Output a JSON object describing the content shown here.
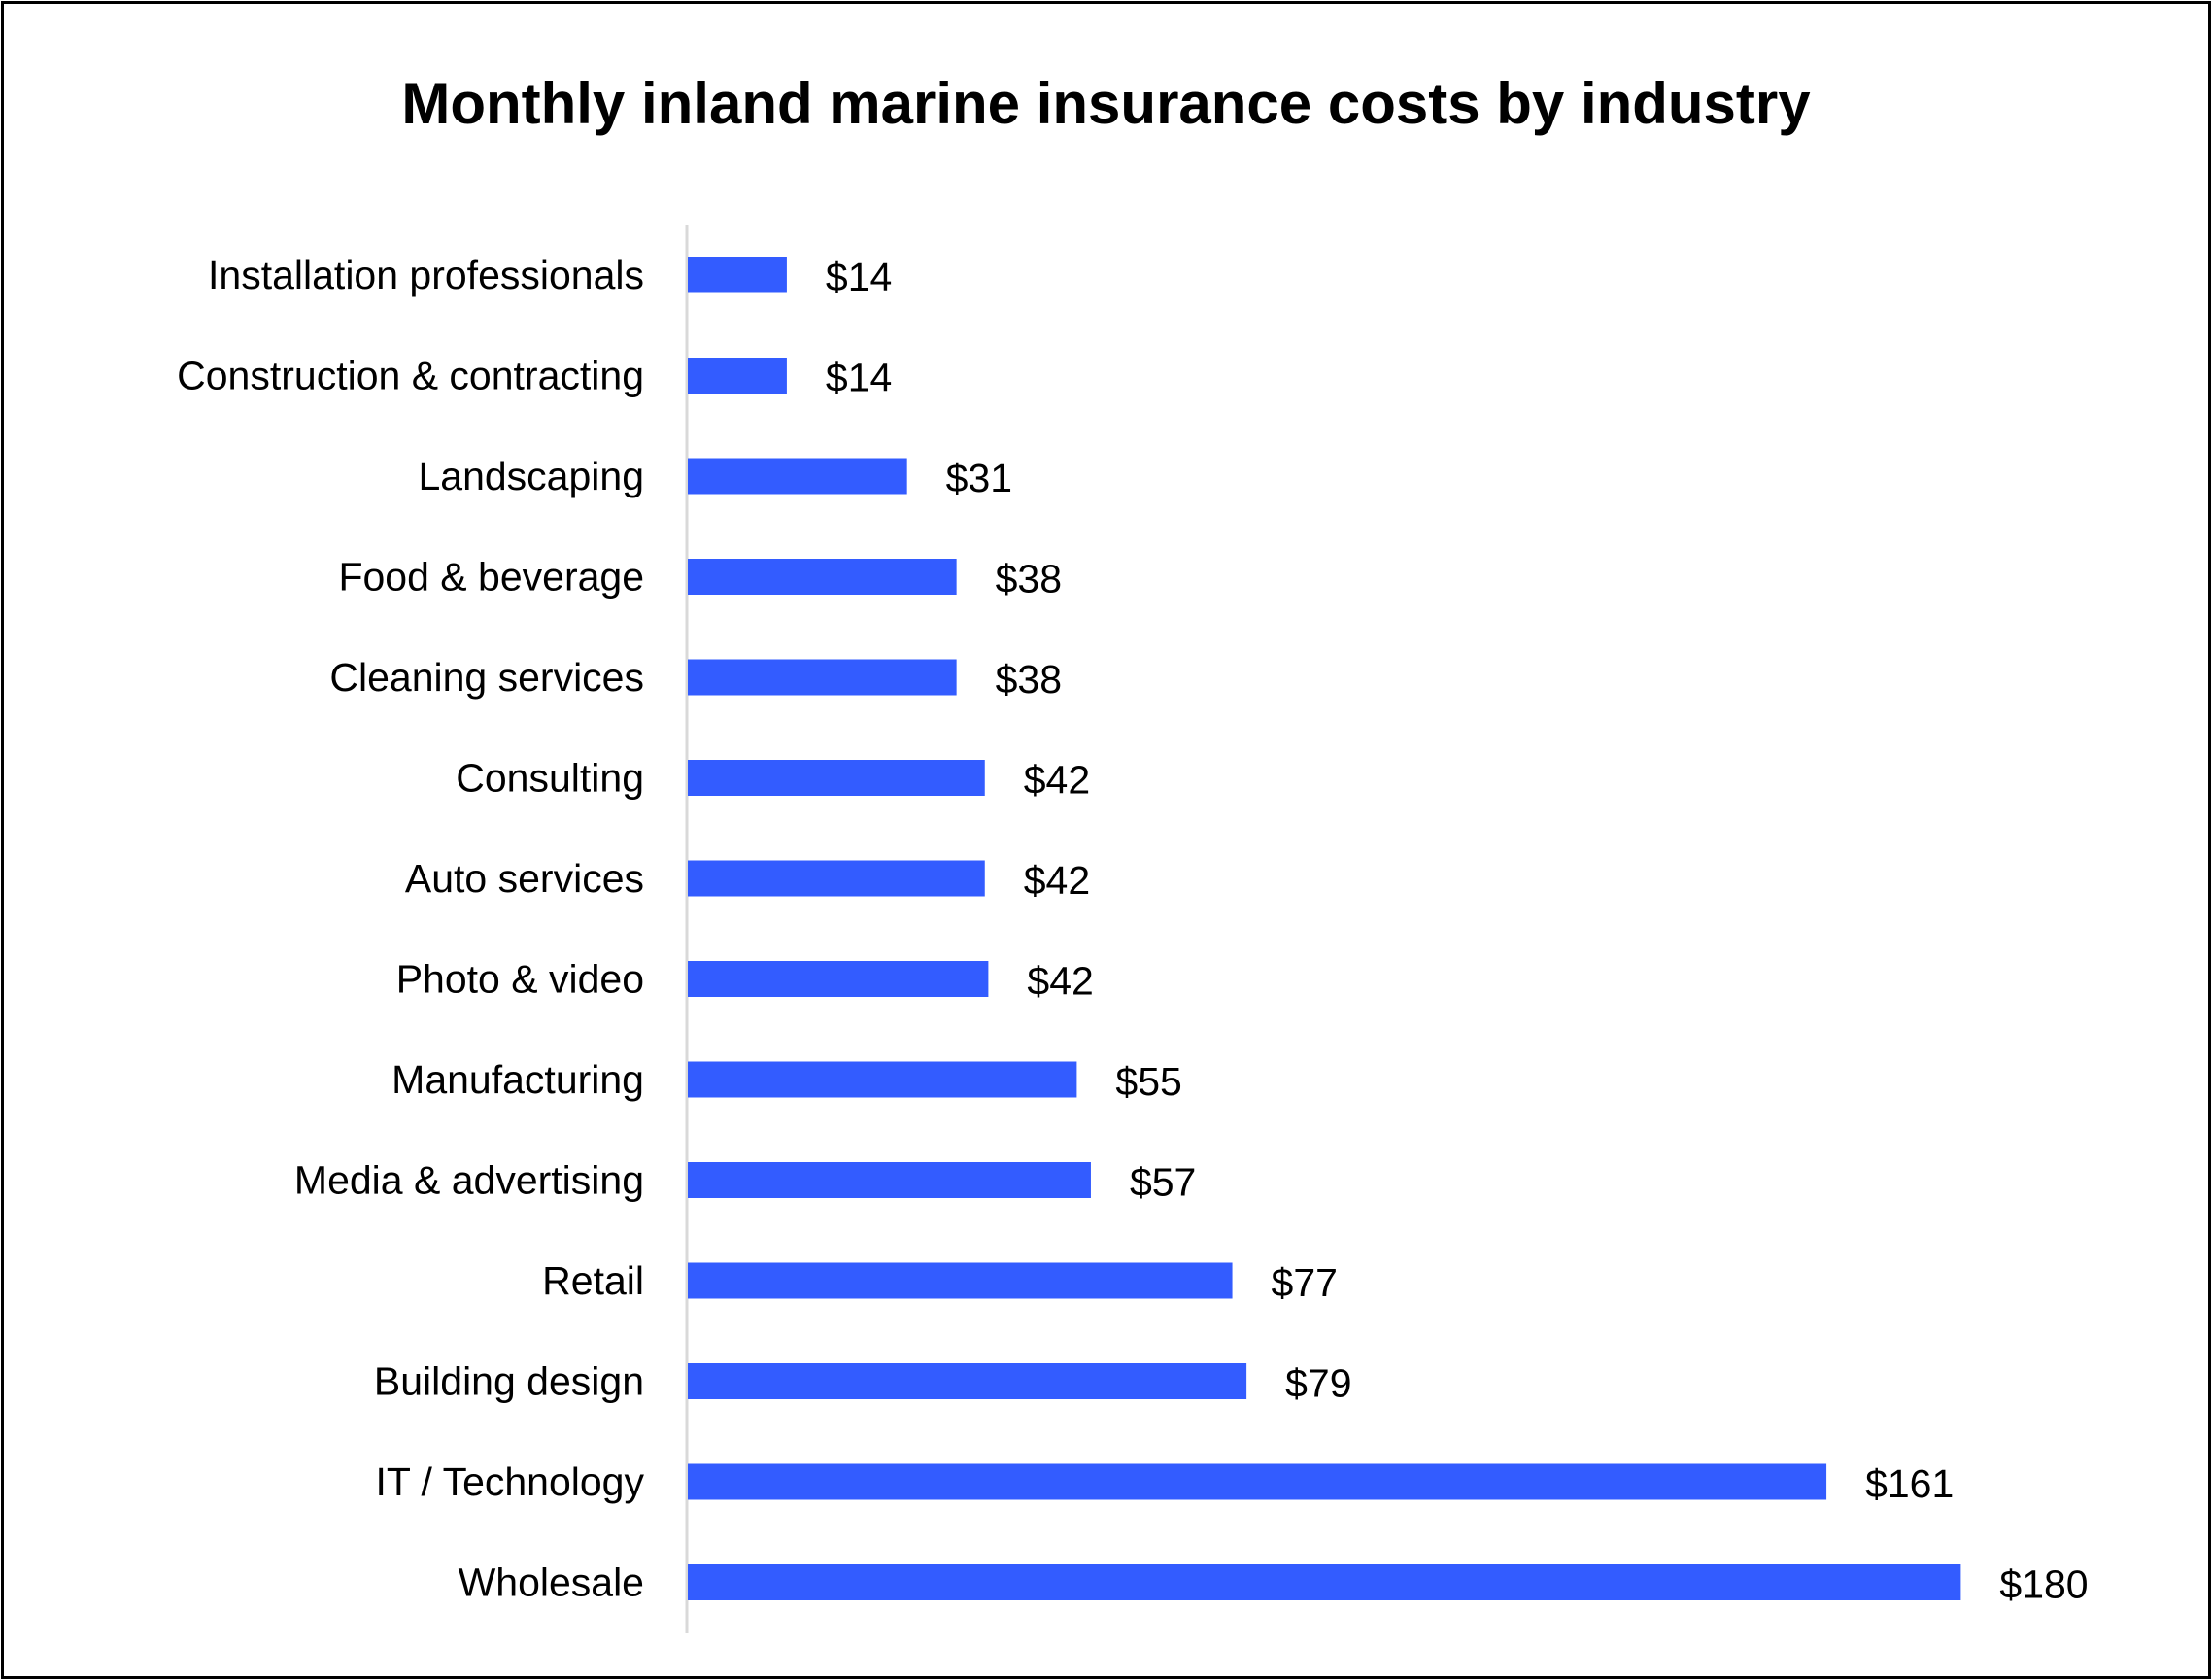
{
  "chart_data": {
    "type": "bar",
    "orientation": "horizontal",
    "title": "Monthly inland marine insurance costs by industry",
    "xlabel": "",
    "ylabel": "",
    "categories": [
      "Installation professionals",
      "Construction & contracting",
      "Landscaping",
      "Food & beverage",
      "Cleaning services",
      "Consulting",
      "Auto services",
      "Photo & video",
      "Manufacturing",
      "Media & advertising",
      "Retail",
      "Building design",
      "IT / Technology",
      "Wholesale"
    ],
    "values": [
      14,
      14,
      31,
      38,
      38,
      42,
      42,
      42.5,
      55,
      57,
      77,
      79,
      161,
      180
    ],
    "data_labels": [
      "$14",
      "$14",
      "$31",
      "$38",
      "$38",
      "$42",
      "$42",
      "$42",
      "$55",
      "$57",
      "$77",
      "$79",
      "$161",
      "$180"
    ],
    "xlim": [
      0,
      185
    ],
    "grid": false,
    "legend": "none",
    "bar_color": "#335CFF"
  }
}
